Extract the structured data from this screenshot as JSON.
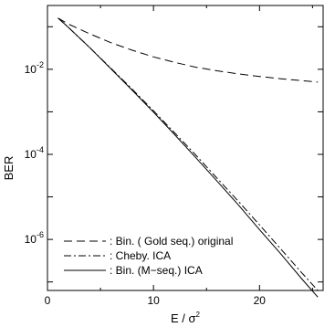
{
  "chart_data": {
    "type": "line",
    "xlabel": "E / σ",
    "xlabel_superscript": "2",
    "ylabel": "BER",
    "xlim": [
      0,
      26
    ],
    "ylim_log10": [
      -7.2,
      -0.5
    ],
    "y_scale": "log",
    "x_ticks": [
      {
        "value": 0,
        "label": "0"
      },
      {
        "value": 10,
        "label": "10"
      },
      {
        "value": 20,
        "label": "20"
      }
    ],
    "y_ticks": [
      {
        "exp": -2,
        "label_base": "10",
        "label_exp": "-2"
      },
      {
        "exp": -4,
        "label_base": "10",
        "label_exp": "-4"
      },
      {
        "exp": -6,
        "label_base": "10",
        "label_exp": "-6"
      }
    ],
    "grid": false,
    "legend_position": "bottom-left",
    "series": [
      {
        "name": ": Bin. ( Gold  seq.) original",
        "style": "dashed",
        "x": [
          1,
          2,
          4,
          6,
          8,
          10,
          12,
          14,
          16,
          18,
          20,
          22,
          24,
          25.5
        ],
        "y": [
          0.16,
          0.115,
          0.068,
          0.042,
          0.028,
          0.0195,
          0.0145,
          0.0112,
          0.0092,
          0.0078,
          0.0068,
          0.006,
          0.0054,
          0.005
        ]
      },
      {
        "name": ": Cheby. ICA",
        "style": "dashdot",
        "x": [
          1,
          2,
          4,
          6,
          8,
          10,
          12,
          14,
          16,
          18,
          20,
          22,
          24,
          25.5
        ],
        "y": [
          0.16,
          0.095,
          0.032,
          0.0105,
          0.0034,
          0.00105,
          0.00032,
          9.55e-05,
          2.75e-05,
          7.9e-06,
          2.2e-06,
          6e-07,
          1.62e-07,
          6.3e-08
        ]
      },
      {
        "name": ": Bin. (M−seq.) ICA",
        "style": "solid",
        "x": [
          1,
          2,
          4,
          6,
          8,
          10,
          12,
          14,
          16,
          18,
          20,
          22,
          24,
          25.5
        ],
        "y": [
          0.16,
          0.095,
          0.032,
          0.0102,
          0.0032,
          0.00098,
          0.00029,
          8.32e-05,
          2.35e-05,
          6.5e-06,
          1.7e-06,
          4.6e-07,
          1.17e-07,
          4.4e-08
        ]
      }
    ]
  }
}
